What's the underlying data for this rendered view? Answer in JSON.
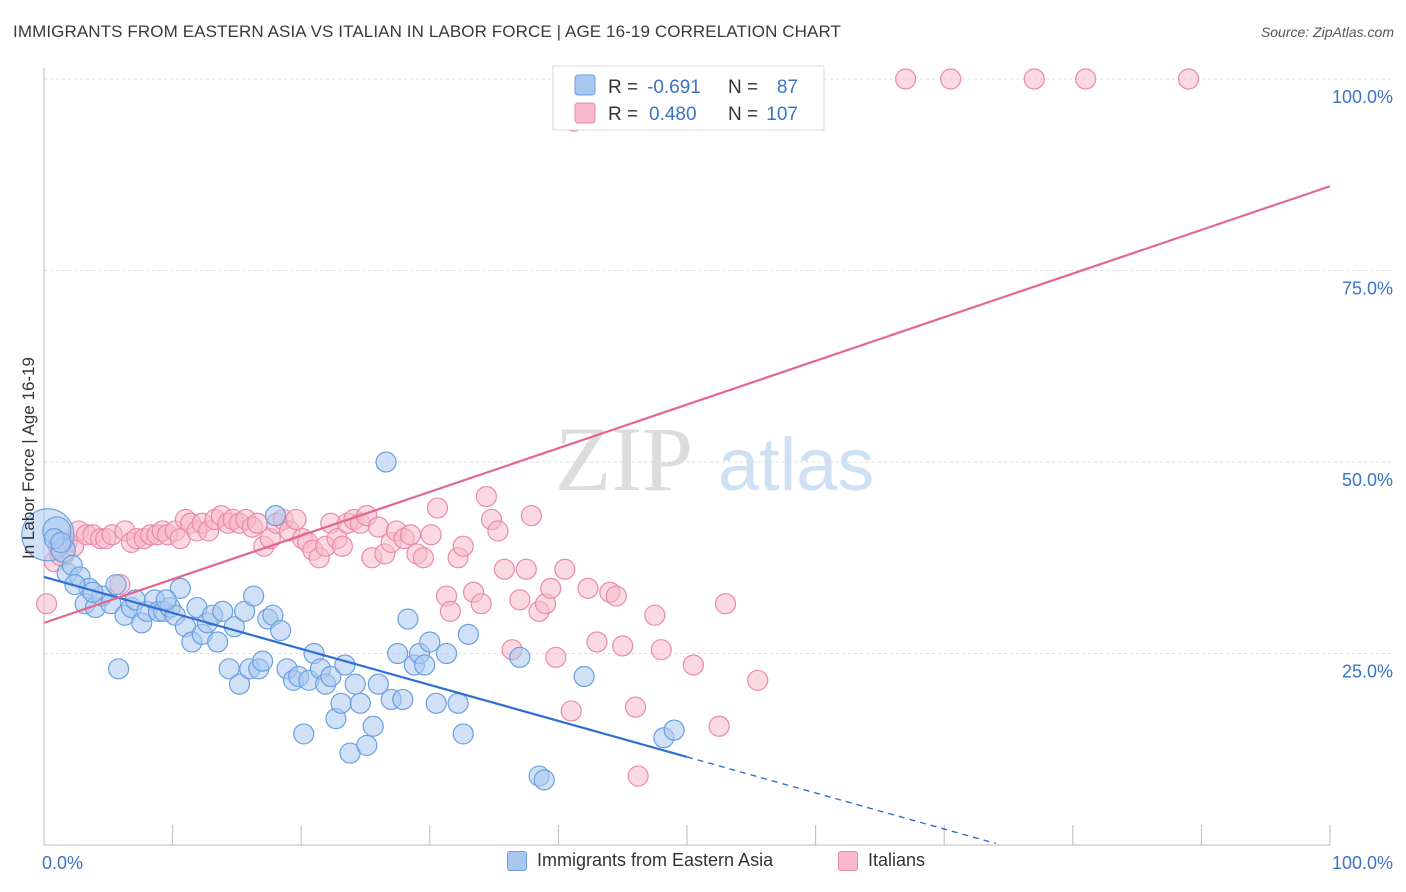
{
  "title": "IMMIGRANTS FROM EASTERN ASIA VS ITALIAN IN LABOR FORCE | AGE 16-19 CORRELATION CHART",
  "source": "Source: ZipAtlas.com",
  "watermark": {
    "zip": "ZIP",
    "atlas": "atlas"
  },
  "colors": {
    "blue_fill": "#a9c8f0",
    "blue_stroke": "#6a9fe0",
    "blue_line": "#2f6fd1",
    "pink_fill": "#f7b9cb",
    "pink_stroke": "#ea8aa9",
    "pink_line": "#e2668f",
    "axis_label": "#3b73c6",
    "grid": "#dddddd"
  },
  "legend": {
    "rows": [
      {
        "r_label": "R =",
        "r_value": "-0.691",
        "n_label": "N =",
        "n_value": "87"
      },
      {
        "r_label": "R =",
        "r_value": "0.480",
        "n_label": "N =",
        "n_value": "107"
      }
    ]
  },
  "bottom_legend": {
    "items": [
      "Immigrants from Eastern Asia",
      "Italians"
    ]
  },
  "chart_data": {
    "type": "scatter",
    "title": "IMMIGRANTS FROM EASTERN ASIA VS ITALIAN IN LABOR FORCE | AGE 16-19 CORRELATION CHART",
    "xlabel": "",
    "ylabel": "In Labor Force | Age 16-19",
    "xlim": [
      0,
      100
    ],
    "ylim": [
      0,
      100
    ],
    "x_tick_labels": [
      "0.0%",
      "100.0%"
    ],
    "y_tick_labels": [
      {
        "value": 25,
        "label": "25.0%"
      },
      {
        "value": 50,
        "label": "50.0%"
      },
      {
        "value": 75,
        "label": "75.0%"
      },
      {
        "value": 100,
        "label": "100.0%"
      }
    ],
    "grid": true,
    "legend_position": "top-center",
    "series": [
      {
        "name": "Immigrants from Eastern Asia",
        "r": -0.691,
        "n": 87,
        "trend": {
          "x0": 0,
          "y0": 35.0,
          "x1": 50,
          "y1": 11.5,
          "dash_x1": 74,
          "dash_y1": 0.2
        },
        "points": [
          [
            0.3,
            40.5,
            26
          ],
          [
            1.0,
            41.0,
            14
          ],
          [
            1.5,
            38.5,
            12
          ],
          [
            1.8,
            35.5,
            10
          ],
          [
            2.2,
            36.5,
            10
          ],
          [
            2.8,
            35.0,
            10
          ],
          [
            3.5,
            33.5,
            10
          ],
          [
            3.2,
            31.5,
            10
          ],
          [
            4.0,
            31.0,
            10
          ],
          [
            4.5,
            32.5,
            10
          ],
          [
            5.2,
            31.5,
            10
          ],
          [
            5.6,
            34.0,
            10
          ],
          [
            5.8,
            23.0,
            10
          ],
          [
            6.3,
            30.0,
            10
          ],
          [
            6.8,
            31.0,
            10
          ],
          [
            7.1,
            32.0,
            10
          ],
          [
            7.6,
            29.0,
            10
          ],
          [
            8.0,
            30.5,
            10
          ],
          [
            8.6,
            32.0,
            10
          ],
          [
            8.9,
            30.5,
            10
          ],
          [
            9.3,
            30.5,
            10
          ],
          [
            9.8,
            31.0,
            10
          ],
          [
            10.2,
            30.0,
            10
          ],
          [
            10.6,
            33.5,
            10
          ],
          [
            11.0,
            28.5,
            10
          ],
          [
            11.5,
            26.5,
            10
          ],
          [
            11.9,
            31.0,
            10
          ],
          [
            12.3,
            27.5,
            10
          ],
          [
            12.7,
            29.0,
            10
          ],
          [
            13.1,
            30.0,
            10
          ],
          [
            13.5,
            26.5,
            10
          ],
          [
            13.9,
            30.5,
            10
          ],
          [
            14.4,
            23.0,
            10
          ],
          [
            14.8,
            28.5,
            10
          ],
          [
            15.2,
            21.0,
            10
          ],
          [
            15.6,
            30.5,
            10
          ],
          [
            16.0,
            23.0,
            10
          ],
          [
            16.3,
            32.5,
            10
          ],
          [
            16.7,
            23.0,
            10
          ],
          [
            17.0,
            24.0,
            10
          ],
          [
            17.4,
            29.5,
            10
          ],
          [
            17.8,
            30.0,
            10
          ],
          [
            18.4,
            28.0,
            10
          ],
          [
            18.9,
            23.0,
            10
          ],
          [
            19.4,
            21.5,
            10
          ],
          [
            19.8,
            22.0,
            10
          ],
          [
            20.2,
            14.5,
            10
          ],
          [
            20.6,
            21.5,
            10
          ],
          [
            21.0,
            25.0,
            10
          ],
          [
            21.5,
            23.0,
            10
          ],
          [
            21.9,
            21.0,
            10
          ],
          [
            22.3,
            22.0,
            10
          ],
          [
            22.7,
            16.5,
            10
          ],
          [
            23.1,
            18.5,
            10
          ],
          [
            23.4,
            23.5,
            10
          ],
          [
            23.8,
            12.0,
            10
          ],
          [
            24.2,
            21.0,
            10
          ],
          [
            24.6,
            18.5,
            10
          ],
          [
            25.1,
            13.0,
            10
          ],
          [
            25.6,
            15.5,
            10
          ],
          [
            26.0,
            21.0,
            10
          ],
          [
            26.6,
            50.0,
            10
          ],
          [
            27.0,
            19.0,
            10
          ],
          [
            27.5,
            25.0,
            10
          ],
          [
            27.9,
            19.0,
            10
          ],
          [
            28.3,
            29.5,
            10
          ],
          [
            28.8,
            23.5,
            10
          ],
          [
            29.2,
            25.0,
            10
          ],
          [
            29.6,
            23.5,
            10
          ],
          [
            30.0,
            26.5,
            10
          ],
          [
            30.5,
            18.5,
            10
          ],
          [
            31.3,
            25.0,
            10
          ],
          [
            32.2,
            18.5,
            10
          ],
          [
            32.6,
            14.5,
            10
          ],
          [
            33.0,
            27.5,
            10
          ],
          [
            37.0,
            24.5,
            10
          ],
          [
            38.5,
            9.0,
            10
          ],
          [
            38.9,
            8.5,
            10
          ],
          [
            42.0,
            22.0,
            10
          ],
          [
            48.2,
            14.0,
            10
          ],
          [
            49.0,
            15.0,
            10
          ],
          [
            0.8,
            40.0,
            10
          ],
          [
            1.3,
            39.5,
            10
          ],
          [
            2.4,
            34.0,
            10
          ],
          [
            3.8,
            33.0,
            10
          ],
          [
            18.0,
            43.0,
            10
          ],
          [
            9.5,
            32.0,
            10
          ]
        ]
      },
      {
        "name": "Italians",
        "r": 0.48,
        "n": 107,
        "trend": {
          "x0": 0,
          "y0": 29.0,
          "x1": 100,
          "y1": 86.0
        },
        "points": [
          [
            0.2,
            31.5,
            10
          ],
          [
            0.8,
            37.0,
            10
          ],
          [
            1.4,
            38.0,
            12
          ],
          [
            1.8,
            39.5,
            10
          ],
          [
            2.3,
            39.0,
            10
          ],
          [
            2.7,
            41.0,
            10
          ],
          [
            3.3,
            40.5,
            10
          ],
          [
            3.8,
            40.5,
            10
          ],
          [
            4.4,
            40.0,
            10
          ],
          [
            4.8,
            40.0,
            10
          ],
          [
            5.3,
            40.5,
            10
          ],
          [
            5.9,
            34.0,
            10
          ],
          [
            6.3,
            41.0,
            10
          ],
          [
            6.8,
            39.5,
            10
          ],
          [
            7.2,
            40.0,
            10
          ],
          [
            7.8,
            40.0,
            10
          ],
          [
            8.3,
            40.5,
            10
          ],
          [
            8.8,
            40.5,
            10
          ],
          [
            9.2,
            41.0,
            10
          ],
          [
            9.6,
            40.5,
            10
          ],
          [
            10.2,
            41.0,
            10
          ],
          [
            10.6,
            40.0,
            10
          ],
          [
            11.0,
            42.5,
            10
          ],
          [
            11.4,
            42.0,
            10
          ],
          [
            11.9,
            41.0,
            10
          ],
          [
            12.3,
            42.0,
            10
          ],
          [
            12.8,
            41.0,
            10
          ],
          [
            13.3,
            42.5,
            10
          ],
          [
            13.8,
            43.0,
            10
          ],
          [
            14.3,
            42.0,
            10
          ],
          [
            14.7,
            42.5,
            10
          ],
          [
            15.2,
            42.0,
            10
          ],
          [
            15.7,
            42.5,
            10
          ],
          [
            16.2,
            41.5,
            10
          ],
          [
            16.6,
            42.0,
            10
          ],
          [
            17.1,
            39.0,
            10
          ],
          [
            17.6,
            40.0,
            10
          ],
          [
            18.1,
            42.0,
            10
          ],
          [
            18.6,
            42.5,
            10
          ],
          [
            19.1,
            41.0,
            10
          ],
          [
            19.6,
            42.5,
            10
          ],
          [
            20.1,
            40.0,
            10
          ],
          [
            20.5,
            39.5,
            10
          ],
          [
            20.9,
            38.5,
            10
          ],
          [
            21.4,
            37.5,
            10
          ],
          [
            21.9,
            39.0,
            10
          ],
          [
            22.3,
            42.0,
            10
          ],
          [
            22.8,
            40.0,
            10
          ],
          [
            23.2,
            39.0,
            10
          ],
          [
            23.6,
            42.0,
            10
          ],
          [
            24.1,
            42.5,
            10
          ],
          [
            24.6,
            42.0,
            10
          ],
          [
            25.1,
            43.0,
            10
          ],
          [
            25.5,
            37.5,
            10
          ],
          [
            26.0,
            41.5,
            10
          ],
          [
            26.5,
            38.0,
            10
          ],
          [
            27.0,
            39.5,
            10
          ],
          [
            27.4,
            41.0,
            10
          ],
          [
            28.0,
            40.0,
            10
          ],
          [
            28.5,
            40.5,
            10
          ],
          [
            29.0,
            38.0,
            10
          ],
          [
            29.5,
            37.5,
            10
          ],
          [
            30.1,
            40.5,
            10
          ],
          [
            30.6,
            44.0,
            10
          ],
          [
            31.3,
            32.5,
            10
          ],
          [
            31.6,
            30.5,
            10
          ],
          [
            32.2,
            37.5,
            10
          ],
          [
            32.6,
            39.0,
            10
          ],
          [
            33.4,
            33.0,
            10
          ],
          [
            34.0,
            31.5,
            10
          ],
          [
            34.4,
            45.5,
            10
          ],
          [
            34.8,
            42.5,
            10
          ],
          [
            35.3,
            41.0,
            10
          ],
          [
            35.8,
            36.0,
            10
          ],
          [
            36.4,
            25.5,
            10
          ],
          [
            37.0,
            32.0,
            10
          ],
          [
            37.5,
            36.0,
            10
          ],
          [
            37.9,
            43.0,
            10
          ],
          [
            38.5,
            30.5,
            10
          ],
          [
            39.0,
            31.5,
            10
          ],
          [
            39.4,
            33.5,
            10
          ],
          [
            39.8,
            24.5,
            10
          ],
          [
            40.5,
            36.0,
            10
          ],
          [
            41.0,
            17.5,
            10
          ],
          [
            42.3,
            33.5,
            10
          ],
          [
            43.0,
            26.5,
            10
          ],
          [
            44.0,
            33.0,
            10
          ],
          [
            44.5,
            32.5,
            10
          ],
          [
            45.0,
            26.0,
            10
          ],
          [
            46.0,
            18.0,
            10
          ],
          [
            46.2,
            9.0,
            10
          ],
          [
            47.5,
            30.0,
            10
          ],
          [
            48.0,
            25.5,
            10
          ],
          [
            50.5,
            23.5,
            10
          ],
          [
            52.5,
            15.5,
            10
          ],
          [
            53.0,
            31.5,
            10
          ],
          [
            55.5,
            21.5,
            10
          ],
          [
            41.2,
            94.5,
            10
          ],
          [
            42.5,
            98.5,
            10
          ],
          [
            48.0,
            100.0,
            10
          ],
          [
            52.0,
            100.0,
            10
          ],
          [
            55.0,
            100.0,
            10
          ],
          [
            67.0,
            100.0,
            10
          ],
          [
            70.5,
            100.0,
            10
          ],
          [
            77.0,
            100.0,
            10
          ],
          [
            81.0,
            100.0,
            10
          ],
          [
            89.0,
            100.0,
            10
          ],
          [
            1.1,
            39.0,
            10
          ]
        ]
      }
    ]
  }
}
